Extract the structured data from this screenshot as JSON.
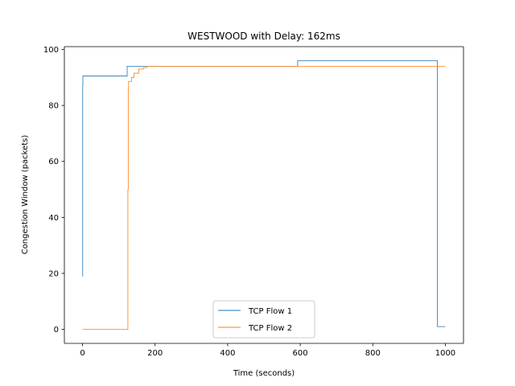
{
  "chart_data": {
    "type": "line",
    "title": "WESTWOOD with Delay: 162ms",
    "xlabel": "Time (seconds)",
    "ylabel": "Congestion Window (packets)",
    "xlim": [
      -50,
      1050
    ],
    "ylim": [
      -5,
      101
    ],
    "xticks": [
      0,
      200,
      400,
      600,
      800,
      1000
    ],
    "yticks": [
      0,
      20,
      40,
      60,
      80,
      100
    ],
    "grid": false,
    "legend_position": "lower-center",
    "series": [
      {
        "name": "TCP Flow 1",
        "color": "#1f77b4",
        "step": "post",
        "x": [
          0,
          0.5,
          1,
          123,
          123,
          593,
          593,
          978,
          978,
          1000
        ],
        "y": [
          19,
          87,
          90.5,
          90.5,
          94,
          94,
          96,
          96,
          1,
          1
        ]
      },
      {
        "name": "TCP Flow 2",
        "color": "#ff7f0e",
        "step": "post",
        "x": [
          0,
          124,
          125,
          126,
          127,
          135,
          142,
          155,
          168,
          178,
          1000
        ],
        "y": [
          0,
          0,
          50,
          86,
          88.5,
          90,
          91.5,
          93,
          93.5,
          94,
          94
        ]
      }
    ]
  }
}
